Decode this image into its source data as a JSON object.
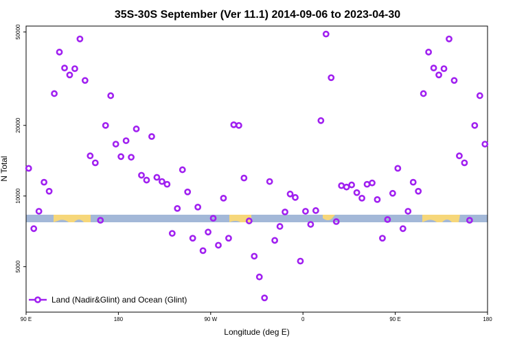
{
  "chart_data": {
    "type": "scatter",
    "title": "35S-30S September (Ver 11.1)   2014-09-06 to 2023-04-30",
    "x_label": "Longitude (deg E)",
    "y_label": "N Total",
    "log_y": true,
    "legend_position": "bottom-left",
    "xlim": [
      90,
      540
    ],
    "ylim": [
      3200,
      53000
    ],
    "xticks": [
      {
        "value": 90,
        "label": "90 E"
      },
      180,
      {
        "value": 270,
        "label": "90 W"
      },
      {
        "value": 360,
        "label": "0"
      },
      {
        "value": 450,
        "label": "90 E"
      },
      {
        "value": 540,
        "label": "180"
      }
    ],
    "yticks": [
      5000,
      10000,
      20000,
      50000
    ],
    "series": [
      {
        "name": "Land (Nadir&Glint) and Ocean (Glint)",
        "color": "#a020f0",
        "x": [
          92.5,
          97.5,
          102.5,
          107.5,
          112.5,
          117.5,
          122.5,
          127.5,
          132.5,
          137.5,
          142.5,
          147.5,
          152.5,
          157.5,
          162.5,
          167.5,
          172.5,
          177.5,
          182.5,
          187.5,
          192.5,
          197.5,
          202.5,
          207.5,
          212.5,
          217.5,
          222.5,
          227.5,
          232.5,
          237.5,
          242.5,
          247.5,
          252.5,
          257.5,
          262.5,
          267.5,
          272.5,
          277.5,
          282.5,
          287.5,
          292.5,
          297.5,
          302.5,
          307.5,
          312.5,
          317.5,
          322.5,
          327.5,
          332.5,
          337.5,
          342.5,
          347.5,
          352.5,
          357.5,
          362.5,
          367.5,
          372.5,
          377.5,
          382.5,
          387.5,
          392.5,
          397.5,
          402.5,
          407.5,
          412.5,
          417.5,
          422.5,
          427.5,
          432.5,
          437.5,
          442.5,
          447.5,
          452.5,
          457.5,
          462.5,
          467.5,
          472.5,
          477.5,
          482.5,
          487.5,
          492.5,
          497.5,
          502.5,
          507.5,
          512.5,
          517.5,
          522.5,
          527.5,
          532.5,
          537.5
        ],
        "values": [
          13120,
          7260,
          8610,
          11450,
          10480,
          27320,
          41060,
          35120,
          32810,
          34890,
          46720,
          31080,
          14830,
          13850,
          7880,
          19990,
          26770,
          16640,
          14720,
          17210,
          14630,
          19320,
          12260,
          11690,
          17930,
          12010,
          11530,
          11220,
          6930,
          8850,
          12940,
          10410,
          6610,
          8970,
          5850,
          7020,
          8040,
          6170,
          9790,
          6610,
          20120,
          19990,
          11930,
          7830,
          5540,
          4520,
          3680,
          11530,
          6470,
          7420,
          8550,
          10200,
          9860,
          5280,
          8610,
          7570,
          8670,
          20960,
          49000,
          31940,
          7780,
          11070,
          10920,
          11150,
          10340,
          9790,
          11220,
          11370,
          9660,
          6610,
          7940,
          10270,
          13120,
          7260,
          8610,
          11450,
          10480,
          27320,
          41060,
          35120,
          32810,
          34890,
          46720,
          31080,
          14830,
          13850,
          7880,
          19990,
          26770,
          16640
        ]
      }
    ]
  }
}
